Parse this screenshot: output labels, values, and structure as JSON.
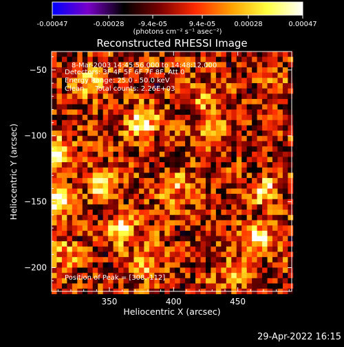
{
  "colorbar": {
    "tick_labels": [
      "-0.00047",
      "-0.00028",
      "-9.4e-05",
      "9.4e-05",
      "0.00028",
      "0.00047"
    ],
    "unit_label": "(photons cm⁻² s⁻¹ asec⁻²)",
    "range": [
      -0.00047,
      0.00047
    ],
    "palette": [
      "#0000ff",
      "#7a00c8",
      "#000000",
      "#7a0000",
      "#ff2a00",
      "#ffa000",
      "#ffff40",
      "#ffffff"
    ]
  },
  "chart_data": {
    "type": "heatmap",
    "title": "Reconstructed RHESSI Image",
    "xlabel": "Heliocentric X (arcsec)",
    "ylabel": "Heliocentric Y (arcsec)",
    "xlim": [
      305,
      492
    ],
    "ylim": [
      -218,
      -36
    ],
    "x_ticks": [
      350,
      400,
      450
    ],
    "y_ticks": [
      -50,
      -100,
      -150,
      -200
    ],
    "x_tick_labels": [
      "350",
      "400",
      "450"
    ],
    "y_tick_labels": [
      "−50",
      "−100",
      "−150",
      "−200"
    ],
    "peak": [
      308,
      -112
    ],
    "hot_spots": [
      {
        "x": 376,
        "y": -89,
        "value": 0.00047
      },
      {
        "x": 308,
        "y": -112,
        "value": 0.00047
      },
      {
        "x": 310,
        "y": -150,
        "value": 0.00045
      },
      {
        "x": 360,
        "y": -171,
        "value": 0.0004
      },
      {
        "x": 465,
        "y": -178,
        "value": 0.00042
      },
      {
        "x": 472,
        "y": -142,
        "value": 0.00035
      },
      {
        "x": 335,
        "y": -58,
        "value": 0.0003
      },
      {
        "x": 400,
        "y": -140,
        "value": 0.0003
      },
      {
        "x": 430,
        "y": -97,
        "value": 0.00024
      },
      {
        "x": 343,
        "y": -137,
        "value": 0.00034
      },
      {
        "x": 380,
        "y": -197,
        "value": 0.00026
      },
      {
        "x": 448,
        "y": -205,
        "value": 0.0002
      },
      {
        "x": 425,
        "y": -70,
        "value": 0.00022
      },
      {
        "x": 315,
        "y": -188,
        "value": 0.00022
      },
      {
        "x": 480,
        "y": -60,
        "value": 0.00018
      }
    ],
    "annotations": {
      "time_range": "8-Mar-2003 14:45:56.000 to 14:48:12.000",
      "detectors": "Detectors: 3F 4F 5F 6F 7F 8F, Att 0",
      "energy": "Energy Range: 25.0 - 50.0 keV",
      "clean": "Clean     Total counts: 2.26E+03",
      "peak_label": "Position of Peak = [308,-112]"
    }
  },
  "footer": {
    "timestamp": "29-Apr-2022 16:15"
  }
}
